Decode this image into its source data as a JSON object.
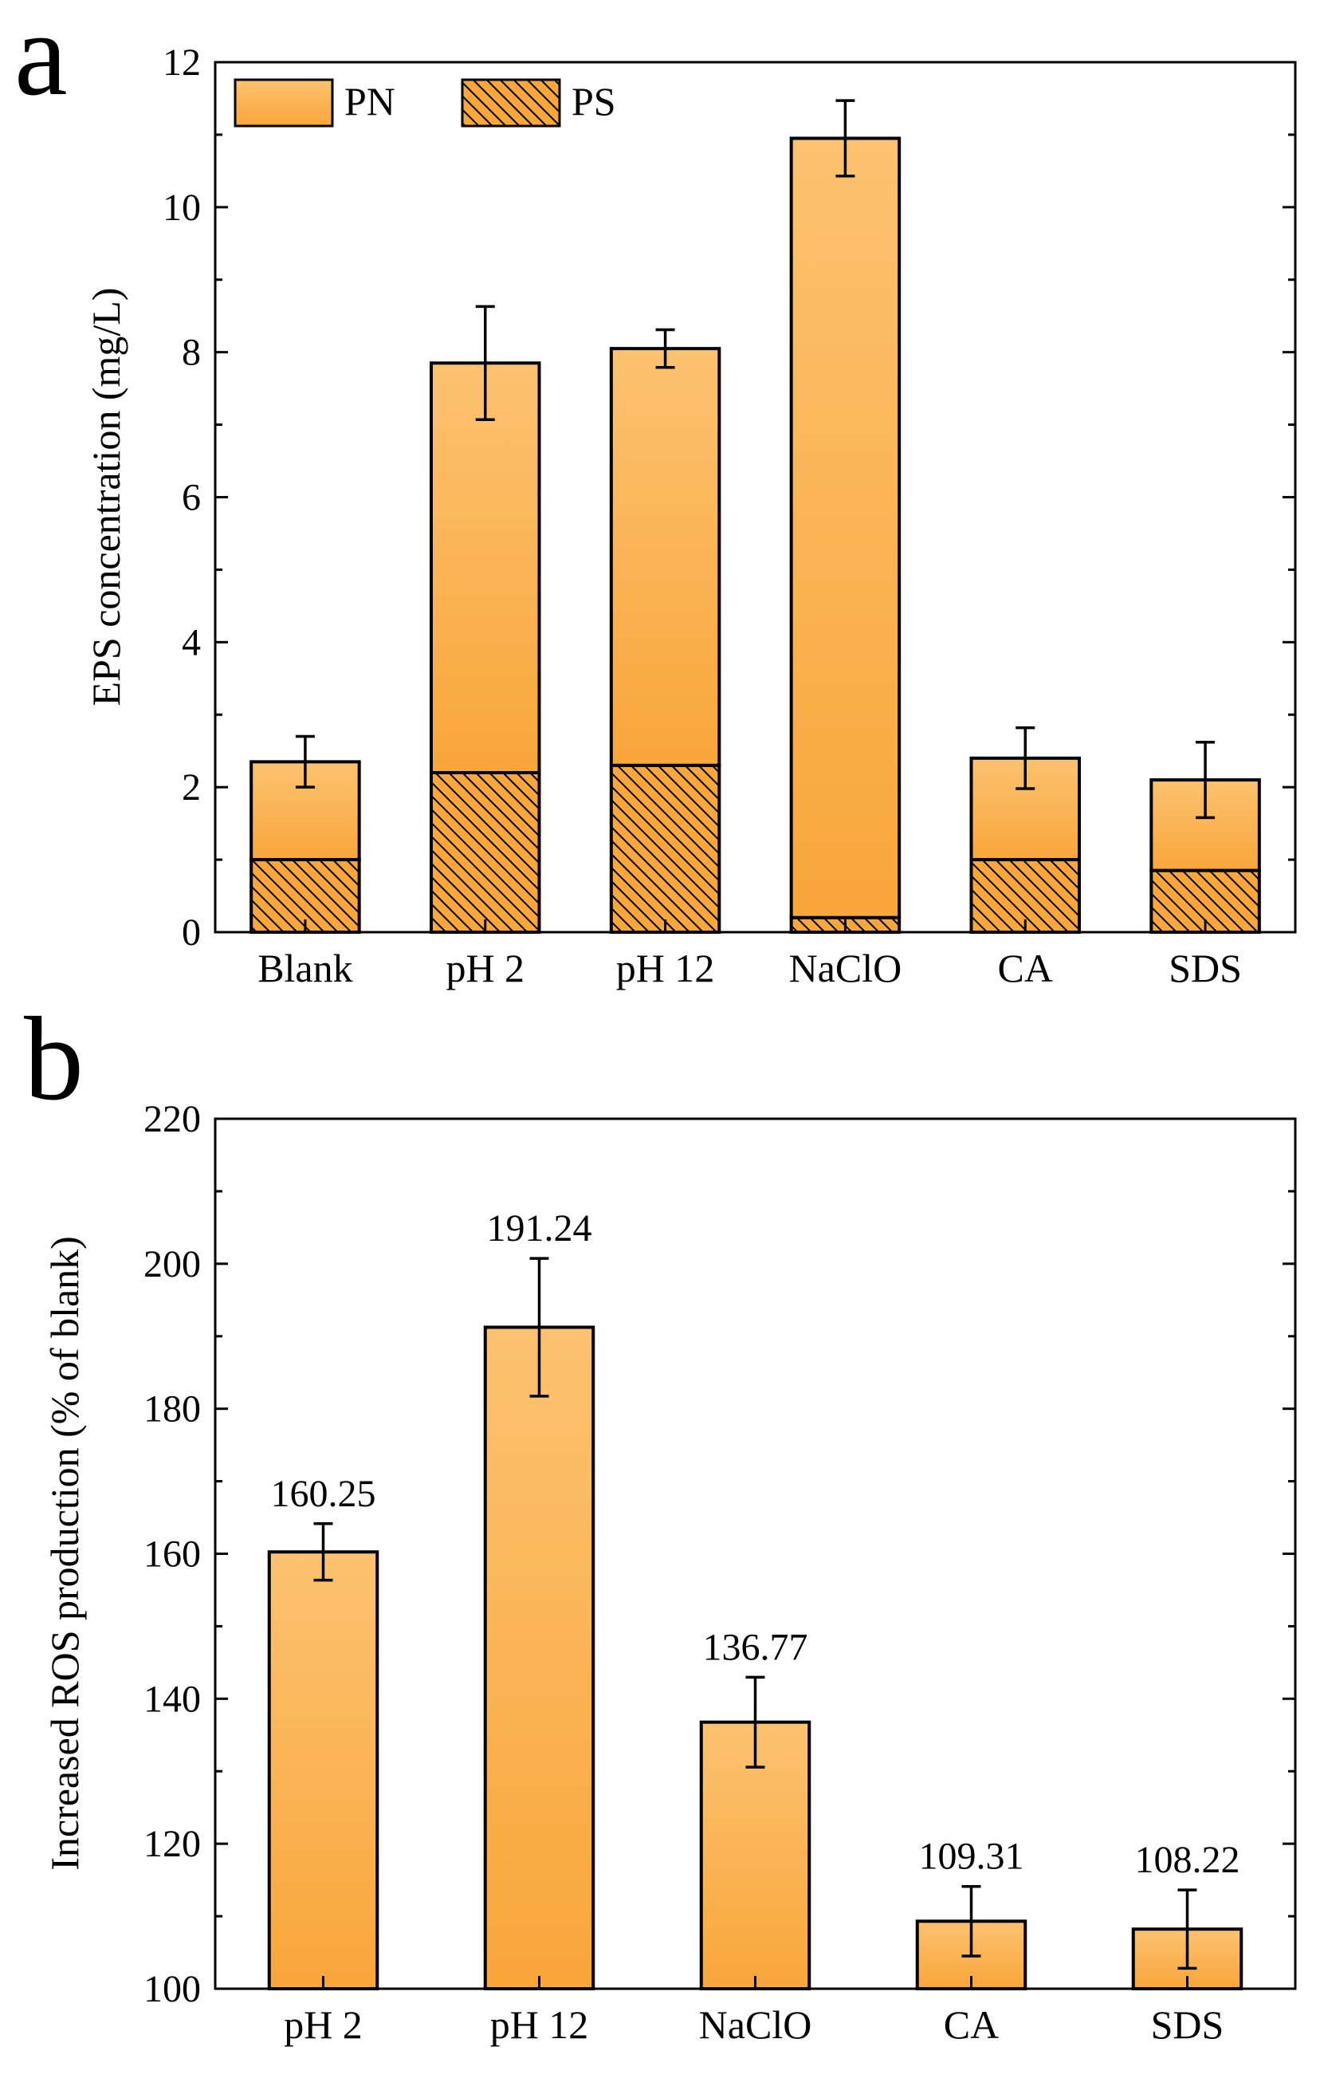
{
  "colors": {
    "bar_fill": "#f9a63a",
    "bar_fill_light": "#fcc270",
    "outline": "#000000",
    "hatch": "#000000"
  },
  "panels": {
    "a": {
      "letter": "a"
    },
    "b": {
      "letter": "b"
    }
  },
  "chart_data": [
    {
      "id": "a",
      "type": "bar",
      "stacked": true,
      "title": "",
      "ylabel": "EPS concentration (mg/L)",
      "xlabel": "",
      "ylim": [
        0,
        12
      ],
      "yticks": [
        0,
        2,
        4,
        6,
        8,
        10,
        12
      ],
      "grid": false,
      "legend_position": "top-left",
      "categories": [
        "Blank",
        "pH 2",
        "pH 12",
        "NaClO",
        "CA",
        "SDS"
      ],
      "series": [
        {
          "name": "PS",
          "pattern": "hatched",
          "values": [
            1.0,
            2.2,
            2.3,
            0.2,
            1.0,
            0.85
          ]
        },
        {
          "name": "PN",
          "pattern": "solid",
          "values": [
            1.35,
            5.65,
            5.75,
            10.75,
            1.4,
            1.25
          ]
        }
      ],
      "legend": [
        "PN",
        "PS"
      ],
      "totals": [
        2.35,
        7.85,
        8.05,
        10.95,
        2.4,
        2.1
      ],
      "errors": [
        0.35,
        0.78,
        0.26,
        0.52,
        0.42,
        0.52
      ]
    },
    {
      "id": "b",
      "type": "bar",
      "title": "",
      "ylabel": "Increased ROS production (% of blank)",
      "xlabel": "",
      "ylim": [
        100,
        220
      ],
      "yticks": [
        100,
        120,
        140,
        160,
        180,
        200,
        220
      ],
      "grid": false,
      "categories": [
        "pH 2",
        "pH 12",
        "NaClO",
        "CA",
        "SDS"
      ],
      "values": [
        160.25,
        191.24,
        136.77,
        109.31,
        108.22
      ],
      "data_labels": [
        "160.25",
        "191.24",
        "136.77",
        "109.31",
        "108.22"
      ],
      "errors": [
        3.9,
        9.5,
        6.2,
        4.8,
        5.4
      ]
    }
  ]
}
